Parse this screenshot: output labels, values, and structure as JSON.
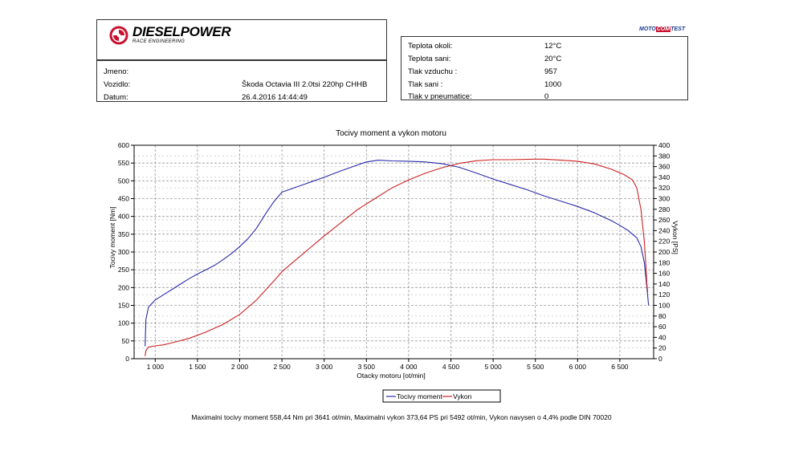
{
  "header": {
    "brand": "DIESELPOWER",
    "tagline": "RACE ENGINEERING",
    "moto_logo": {
      "part1": "MOTO",
      "part2": "COM",
      "part3": "TEST"
    }
  },
  "info": {
    "rows": [
      {
        "label": "Jmeno:",
        "value": ""
      },
      {
        "label": "Vozidlo:",
        "value": "Škoda Octavia III 2.0tsi 220hp CHHB"
      },
      {
        "label": "Datum:",
        "value": "26.4.2016 14:44:49"
      }
    ]
  },
  "conditions": {
    "rows": [
      {
        "label": "Teplota okoli:",
        "value": "12°C"
      },
      {
        "label": "Teplota sani:",
        "value": "20°C"
      },
      {
        "label": "Tlak vzduchu :",
        "value": "957"
      },
      {
        "label": "Tlak sani :",
        "value": "1000"
      },
      {
        "label": "Tlak v pneumatice:",
        "value": "0"
      }
    ]
  },
  "chart_data": {
    "type": "line",
    "title": "Tocivy moment a vykon motoru",
    "xlabel": "Otacky motoru [ot/min]",
    "ylabel": "Tocivy moment [Nm]",
    "y2label": "Vykon [PS]",
    "xlim": [
      750,
      6900
    ],
    "ylim": [
      0,
      600
    ],
    "y2lim": [
      0,
      400
    ],
    "x_ticks": [
      1000,
      1500,
      2000,
      2500,
      3000,
      3500,
      4000,
      4500,
      5000,
      5500,
      6000,
      6500
    ],
    "x_tick_labels": [
      "1 000",
      "1 500",
      "2 000",
      "2 500",
      "3 000",
      "3 500",
      "4 000",
      "4 500",
      "5 000",
      "5 500",
      "6 000",
      "6 500"
    ],
    "y_ticks": [
      0,
      50,
      100,
      150,
      200,
      250,
      300,
      350,
      400,
      450,
      500,
      550,
      600
    ],
    "y2_ticks": [
      0,
      20,
      40,
      60,
      80,
      100,
      120,
      140,
      160,
      180,
      200,
      220,
      240,
      260,
      280,
      300,
      320,
      340,
      360,
      380,
      400
    ],
    "grid": true,
    "legend_position": "bottom-center",
    "series": [
      {
        "name": "Tocivy moment",
        "axis": "left",
        "color": "#2a2aaa",
        "x": [
          880,
          890,
          920,
          1000,
          1100,
          1200,
          1300,
          1400,
          1500,
          1600,
          1700,
          1800,
          1900,
          2000,
          2100,
          2200,
          2300,
          2400,
          2500,
          2700,
          3000,
          3200,
          3400,
          3500,
          3641,
          3800,
          4000,
          4200,
          4400,
          4600,
          4800,
          5000,
          5200,
          5400,
          5600,
          5800,
          6000,
          6200,
          6400,
          6500,
          6600,
          6700,
          6750,
          6790,
          6820,
          6840
        ],
        "y": [
          35,
          110,
          145,
          165,
          180,
          195,
          210,
          225,
          238,
          250,
          262,
          278,
          295,
          315,
          338,
          367,
          405,
          440,
          468,
          485,
          510,
          528,
          545,
          553,
          558,
          556,
          555,
          553,
          548,
          538,
          522,
          505,
          490,
          475,
          458,
          443,
          428,
          410,
          388,
          375,
          360,
          340,
          315,
          270,
          200,
          150
        ]
      },
      {
        "name": "Vykon",
        "axis": "right",
        "color": "#cc2222",
        "x": [
          880,
          890,
          920,
          1000,
          1100,
          1200,
          1400,
          1600,
          1800,
          2000,
          2200,
          2400,
          2500,
          2700,
          3000,
          3200,
          3400,
          3600,
          3800,
          4000,
          4200,
          4400,
          4600,
          4800,
          5000,
          5200,
          5492,
          5600,
          5800,
          6000,
          6200,
          6400,
          6550,
          6650,
          6700,
          6750,
          6790,
          6810,
          6820,
          6830
        ],
        "y": [
          5,
          15,
          22,
          24,
          26,
          30,
          38,
          50,
          64,
          83,
          110,
          145,
          163,
          190,
          230,
          255,
          280,
          300,
          320,
          335,
          348,
          358,
          366,
          371,
          373,
          373,
          374,
          374,
          372,
          370,
          365,
          355,
          345,
          335,
          320,
          280,
          220,
          170,
          140,
          125
        ]
      }
    ]
  },
  "footer": {
    "text": "Maximalni tocivy moment 558,44 Nm pri 3641 ot/min,  Maximalni vykon 373,64 PS pri 5492 ot/min,  Vykon navysen o 4,4% podle DIN 70020"
  }
}
